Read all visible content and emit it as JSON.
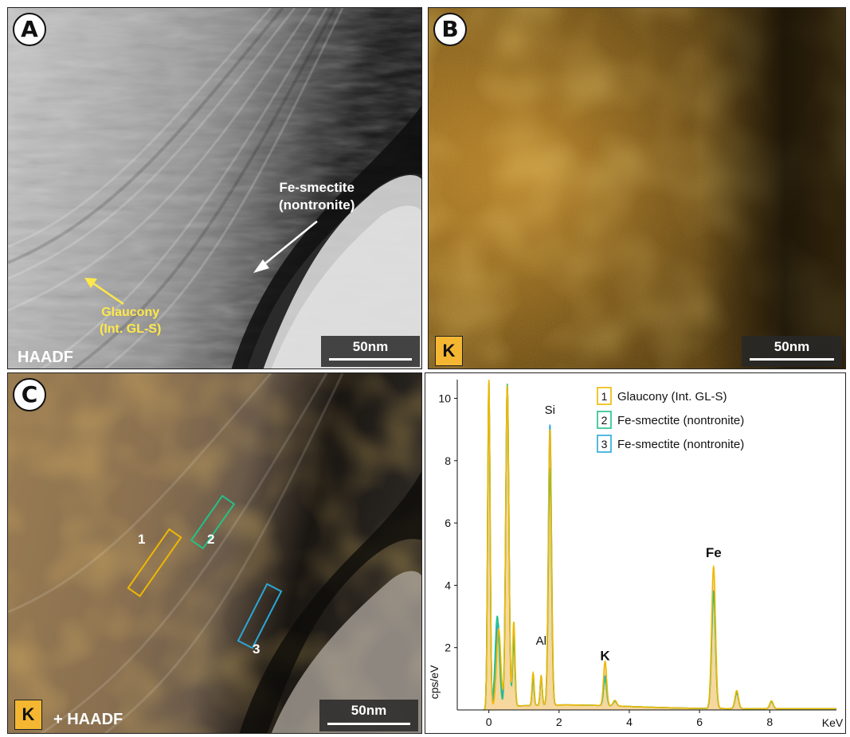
{
  "figure": {
    "panel_a": {
      "label": "A",
      "mode_label": "HAADF",
      "scale_label": "50nm",
      "annotation_fe": [
        "Fe-smectite",
        "(nontronite)"
      ],
      "annotation_glauc": [
        "Glaucony",
        "(Int. GL-S)"
      ],
      "colors": {
        "fe_arrow": "#ffffff",
        "glauc_arrow": "#ffe84a"
      }
    },
    "panel_b": {
      "label": "B",
      "element_label": "K",
      "scale_label": "50nm"
    },
    "panel_c_image": {
      "label": "C",
      "element_label": "K",
      "mode_suffix": "+ HAADF",
      "scale_label": "50nm",
      "boxes": [
        {
          "label": "1",
          "color": "#f0b800"
        },
        {
          "label": "2",
          "color": "#25c088"
        },
        {
          "label": "3",
          "color": "#2aa8d8"
        }
      ]
    }
  },
  "chart_data": {
    "type": "area",
    "xlabel": "KeV",
    "ylabel": "cps/eV",
    "xlim": [
      -0.9,
      9.9
    ],
    "ylim": [
      0,
      10.6
    ],
    "xticks": [
      0,
      2,
      4,
      6,
      8
    ],
    "yticks": [
      2,
      4,
      6,
      8,
      10
    ],
    "legend_position": "top-right",
    "legend": [
      {
        "number": "1",
        "name": "Glaucony (Int. GL-S)",
        "color": "#f0b800"
      },
      {
        "number": "2",
        "name": "Fe-smectite (nontronite)",
        "color": "#25c088"
      },
      {
        "number": "3",
        "name": "Fe-smectite (nontronite)",
        "color": "#2aa8d8"
      }
    ],
    "peak_labels": [
      {
        "text": "Si",
        "x": 1.74,
        "y": 9.5,
        "bold": false
      },
      {
        "text": "Al",
        "x": 1.49,
        "y": 2.1,
        "bold": false
      },
      {
        "text": "K",
        "x": 3.31,
        "y": 1.6,
        "bold": true
      },
      {
        "text": "Fe",
        "x": 6.4,
        "y": 4.9,
        "bold": true
      }
    ],
    "series": [
      {
        "name": "1",
        "color": "#f0b800",
        "fill": "#f6d79e",
        "peaks": [
          [
            0.0,
            10.5,
            0.035
          ],
          [
            0.28,
            2.5,
            0.06
          ],
          [
            0.525,
            10.3,
            0.045
          ],
          [
            0.71,
            2.7,
            0.035
          ],
          [
            1.26,
            1.05,
            0.03
          ],
          [
            1.49,
            0.95,
            0.03
          ],
          [
            1.74,
            8.85,
            0.045
          ],
          [
            3.31,
            1.42,
            0.045
          ],
          [
            3.59,
            0.18,
            0.05
          ],
          [
            6.4,
            4.55,
            0.055
          ],
          [
            7.06,
            0.58,
            0.05
          ],
          [
            8.05,
            0.25,
            0.05
          ]
        ]
      },
      {
        "name": "2",
        "color": "#25c088",
        "fill": "none",
        "peaks": [
          [
            0.0,
            10.4,
            0.035
          ],
          [
            0.24,
            2.9,
            0.06
          ],
          [
            0.525,
            10.35,
            0.045
          ],
          [
            0.71,
            2.1,
            0.035
          ],
          [
            1.26,
            0.82,
            0.03
          ],
          [
            1.49,
            0.88,
            0.03
          ],
          [
            1.74,
            7.6,
            0.045
          ],
          [
            3.31,
            0.85,
            0.045
          ],
          [
            3.59,
            0.15,
            0.05
          ],
          [
            6.4,
            3.65,
            0.055
          ],
          [
            7.06,
            0.5,
            0.05
          ],
          [
            8.05,
            0.22,
            0.05
          ]
        ]
      },
      {
        "name": "3",
        "color": "#2aa8d8",
        "fill": "none",
        "peaks": [
          [
            0.0,
            10.3,
            0.035
          ],
          [
            0.26,
            2.7,
            0.06
          ],
          [
            0.525,
            10.3,
            0.045
          ],
          [
            0.71,
            2.3,
            0.035
          ],
          [
            1.26,
            0.9,
            0.03
          ],
          [
            1.49,
            0.92,
            0.03
          ],
          [
            1.74,
            9.0,
            0.045
          ],
          [
            3.31,
            0.95,
            0.045
          ],
          [
            3.59,
            0.16,
            0.05
          ],
          [
            6.4,
            3.75,
            0.055
          ],
          [
            7.06,
            0.52,
            0.05
          ],
          [
            8.05,
            0.23,
            0.05
          ]
        ]
      }
    ]
  }
}
